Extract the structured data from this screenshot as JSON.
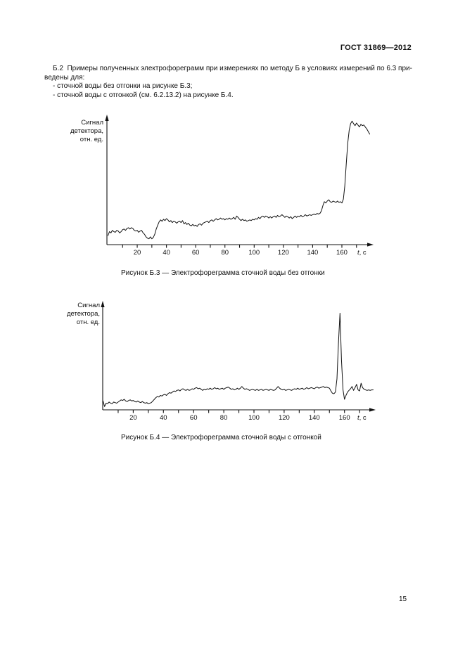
{
  "document": {
    "header": "ГОСТ 31869—2012",
    "paragraph_lines": [
      "Б.2  Примеры полученных электрофореграмм при измерениях по методу Б в условиях измерений по 6.3 при-",
      "ведены для:"
    ],
    "bullets": [
      "- сточной воды без отгонки на рисунке Б.3;",
      "- сточной воды с отгонкой (см. 6.2.13.2) на рисунке Б.4."
    ],
    "page_number": "15"
  },
  "chart_data": [
    {
      "type": "line",
      "title": "Рисунок Б.3 — Электрофореграмма сточной воды без отгонки",
      "ylabel": "Сигнал детектора, отн. ед.",
      "ylabel_lines": [
        "Сигнал",
        "детектора,",
        "отн. ед."
      ],
      "xlabel": "t, с",
      "xlabel_parts": {
        "italic": "t",
        "rest": ", с"
      },
      "x_start": 0,
      "x_step": 1,
      "xlim": [
        0,
        182
      ],
      "ylim": [
        0,
        100
      ],
      "x_ticks_labeled": [
        20,
        40,
        60,
        80,
        100,
        120,
        140,
        160
      ],
      "x_minor_tick_step": 10,
      "x_tick_max": 170,
      "values": [
        7,
        10,
        9,
        11,
        10,
        9.5,
        11,
        10.5,
        9,
        10,
        11.5,
        12,
        11,
        12.5,
        13,
        12,
        13,
        12.5,
        11,
        10.5,
        11,
        9.5,
        10.5,
        11,
        9,
        8,
        6,
        5,
        4.5,
        6,
        4.5,
        5.5,
        8,
        12,
        15,
        17.5,
        19,
        18,
        19.5,
        18.5,
        20,
        19,
        17.5,
        18.5,
        17,
        18,
        17.5,
        16.5,
        17.5,
        18,
        17,
        18.5,
        16,
        17,
        15.5,
        16.5,
        15,
        14.5,
        15.5,
        14.5,
        15,
        14,
        15.5,
        16,
        15,
        16.5,
        17,
        17.5,
        18,
        17,
        18.5,
        19,
        18,
        19,
        20,
        19,
        19.5,
        20.5,
        19.5,
        20,
        19,
        20,
        19.5,
        20.5,
        19.5,
        20,
        21,
        19.5,
        22,
        21,
        19.5,
        18.5,
        19.5,
        18.5,
        19,
        18,
        18.5,
        19,
        18.5,
        19.5,
        19,
        20,
        19.5,
        21,
        20,
        21.5,
        22,
        21,
        22,
        21.5,
        20.5,
        21.5,
        20.5,
        21.5,
        22,
        21,
        22.5,
        21.5,
        22,
        23,
        22,
        21,
        22,
        21.5,
        20.5,
        21.5,
        20,
        21,
        22,
        21,
        22,
        21.5,
        22.5,
        21.5,
        22,
        23,
        22,
        22.5,
        23,
        22.5,
        23,
        23.5,
        23,
        24,
        23.5,
        24,
        26,
        30,
        33,
        32,
        33.5,
        34.5,
        33,
        32.5,
        33.5,
        33,
        32.5,
        33.5,
        32.5,
        33,
        32,
        35,
        45,
        62,
        78,
        88,
        93,
        95,
        93,
        91.5,
        93.5,
        92,
        90.5,
        92.5,
        91.5,
        92,
        90.5,
        89,
        87,
        85
      ]
    },
    {
      "type": "line",
      "title": "Рисунок Б.4 — Электрофореграмма сточной воды с отгонкой",
      "ylabel": "Сигнал детектора, отн. ед.",
      "ylabel_lines": [
        "Сигнал",
        "детектора,",
        "отн. ед."
      ],
      "xlabel": "t, с",
      "xlabel_parts": {
        "italic": "t",
        "rest": ", с"
      },
      "x_start": 0,
      "x_step": 1,
      "xlim": [
        0,
        182
      ],
      "ylim": [
        0,
        100
      ],
      "x_ticks_labeled": [
        20,
        40,
        60,
        80,
        100,
        120,
        140,
        160
      ],
      "x_minor_tick_step": 10,
      "x_tick_max": 170,
      "values": [
        8,
        3,
        6,
        5.5,
        7,
        6,
        5.5,
        7,
        6.5,
        6,
        7,
        8,
        9,
        8.5,
        9.5,
        8,
        7.5,
        8.5,
        9,
        8,
        8.5,
        7.5,
        7,
        8,
        7,
        6.5,
        7.5,
        6.5,
        6,
        6.5,
        5.5,
        6,
        6.5,
        8,
        9.5,
        11,
        12,
        11.5,
        13,
        12.5,
        13.5,
        14,
        13,
        14.5,
        15.5,
        15,
        16,
        17,
        16.5,
        17.5,
        18,
        17,
        18.5,
        19,
        18,
        17.5,
        18.5,
        17.5,
        18,
        19,
        18.5,
        19.5,
        20,
        19,
        19.5,
        18.5,
        17.5,
        18.5,
        18,
        19,
        18.5,
        19.5,
        18.5,
        19,
        20,
        19,
        19.5,
        18.5,
        19,
        19.5,
        18.5,
        19.5,
        20,
        20.5,
        19.5,
        18.5,
        19,
        18,
        18.5,
        19.5,
        18.5,
        19.5,
        21,
        19.5,
        18.5,
        19,
        18.5,
        17.5,
        18,
        18.5,
        18,
        17.5,
        18.5,
        17.5,
        18,
        18.5,
        17.5,
        18,
        18.5,
        18,
        17.5,
        18.5,
        18,
        17.5,
        18,
        19.5,
        21,
        19.5,
        18.5,
        18,
        18.5,
        17.5,
        18,
        18.5,
        18,
        17.5,
        18.5,
        19,
        18.5,
        19.5,
        18.5,
        19,
        19.5,
        18.5,
        19,
        20,
        19,
        19.5,
        20,
        19.5,
        19,
        20,
        20.5,
        19.5,
        20,
        20.5,
        21,
        20,
        20.5,
        20,
        19.5,
        17,
        15,
        14.5,
        16,
        28,
        60,
        87,
        45,
        18,
        9.5,
        13,
        16,
        17.5,
        19,
        21,
        17.5,
        20,
        23,
        18,
        17,
        24,
        20,
        18.5,
        18,
        17.5,
        18,
        17.5,
        18,
        18
      ]
    }
  ]
}
